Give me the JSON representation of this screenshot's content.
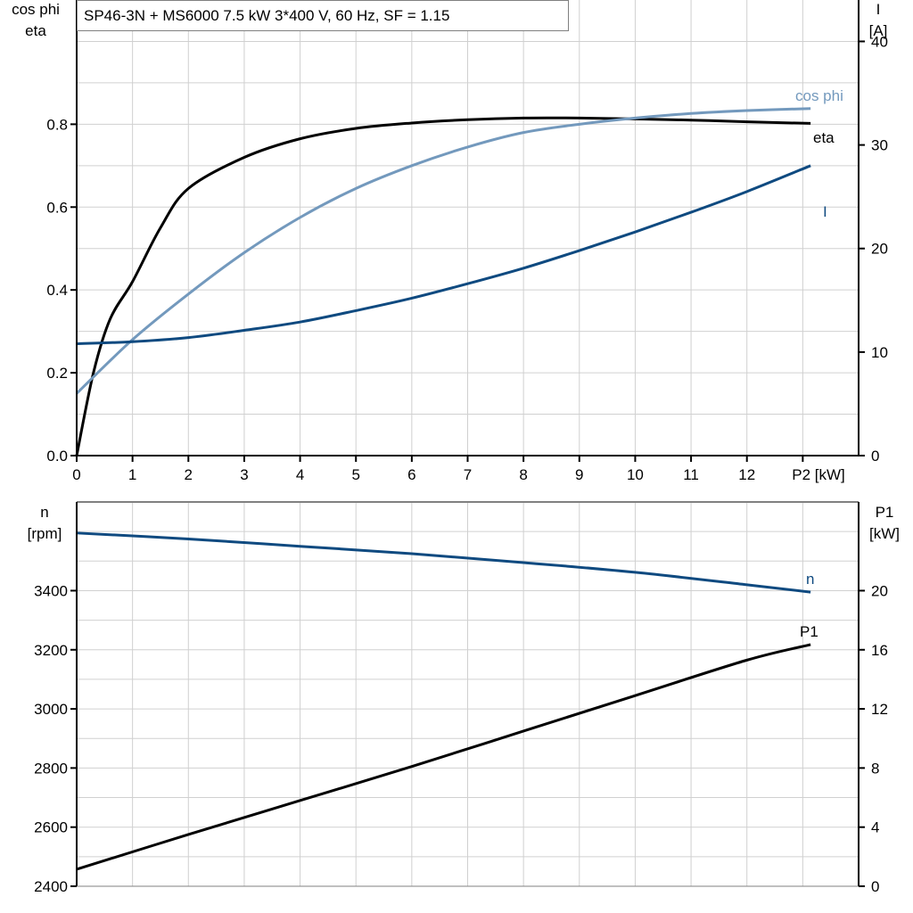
{
  "title": "SP46-3N + MS6000   7.5 kW   3*400 V, 60 Hz, SF = 1.15",
  "colors": {
    "eta": "#000000",
    "cos_phi": "#7399bd",
    "I": "#0f4a80",
    "n": "#0f4a80",
    "P1": "#000000",
    "grid": "#d0d0d0"
  },
  "chart_data": [
    {
      "type": "line",
      "xlabel": "P2 [kW]",
      "xlim": [
        0,
        14
      ],
      "x_ticks": [
        "0",
        "1",
        "2",
        "3",
        "4",
        "5",
        "6",
        "7",
        "8",
        "9",
        "10",
        "11",
        "12"
      ],
      "ylabel_left": [
        "cos phi",
        "eta"
      ],
      "ylim_left": [
        0,
        1.1
      ],
      "y_ticks_left": [
        "0.0",
        "0.2",
        "0.4",
        "0.6",
        "0.8"
      ],
      "ylabel_right": [
        "I",
        "[A]"
      ],
      "ylim_right": [
        0,
        44
      ],
      "y_ticks_right": [
        "0",
        "10",
        "20",
        "30",
        "40"
      ],
      "grid": true,
      "series": [
        {
          "name": "eta",
          "axis": "left",
          "x": [
            0,
            0.3,
            0.6,
            1,
            1.5,
            2,
            3,
            4,
            5,
            6,
            7,
            8,
            9,
            10,
            11,
            12,
            13.14
          ],
          "y": [
            0,
            0.2,
            0.33,
            0.42,
            0.55,
            0.645,
            0.72,
            0.765,
            0.79,
            0.803,
            0.811,
            0.815,
            0.815,
            0.813,
            0.81,
            0.806,
            0.802
          ]
        },
        {
          "name": "cos phi",
          "axis": "left",
          "x": [
            0,
            1,
            2,
            3,
            4,
            5,
            6,
            7,
            8,
            9,
            10,
            11,
            12,
            13.14
          ],
          "y": [
            0.15,
            0.28,
            0.39,
            0.49,
            0.575,
            0.645,
            0.7,
            0.745,
            0.78,
            0.8,
            0.815,
            0.826,
            0.833,
            0.838
          ]
        },
        {
          "name": "I",
          "axis": "right",
          "x": [
            0,
            1,
            2,
            3,
            4,
            5,
            6,
            7,
            8,
            9,
            10,
            11,
            12,
            13.14
          ],
          "y": [
            10.8,
            11.0,
            11.4,
            12.1,
            12.9,
            14.0,
            15.2,
            16.6,
            18.1,
            19.8,
            21.6,
            23.5,
            25.5,
            28.0
          ]
        }
      ]
    },
    {
      "type": "line",
      "xlim": [
        0,
        14
      ],
      "ylabel_left": [
        "n",
        "[rpm]"
      ],
      "ylim_left": [
        2400,
        3700
      ],
      "y_ticks_left": [
        "2400",
        "2600",
        "2800",
        "3000",
        "3200",
        "3400"
      ],
      "ylabel_right": [
        "P1",
        "[kW]"
      ],
      "ylim_right": [
        0,
        26
      ],
      "y_ticks_right": [
        "0",
        "4",
        "8",
        "12",
        "16",
        "20"
      ],
      "grid": true,
      "series": [
        {
          "name": "n",
          "axis": "left",
          "x": [
            0,
            2,
            4,
            6,
            8,
            10,
            12,
            13.14
          ],
          "y": [
            3595,
            3575,
            3550,
            3525,
            3495,
            3462,
            3420,
            3395
          ]
        },
        {
          "name": "P1",
          "axis": "right",
          "x": [
            0,
            2,
            4,
            6,
            8,
            10,
            12,
            13.14
          ],
          "y": [
            1.15,
            3.5,
            5.8,
            8.1,
            10.5,
            12.9,
            15.3,
            16.35
          ]
        }
      ]
    }
  ]
}
